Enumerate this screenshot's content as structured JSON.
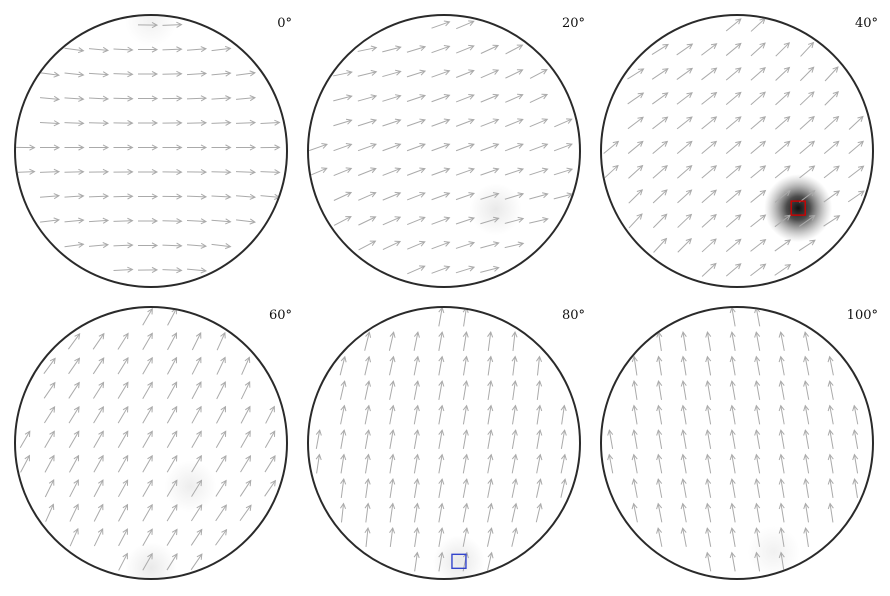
{
  "panels": [
    {
      "label": "0°",
      "direction_deg": 0,
      "arrow_color": "#aaaaaa",
      "hotspots": [
        {
          "x": 0.0,
          "y": 0.96,
          "intensity": 0.12
        }
      ],
      "marker": null
    },
    {
      "label": "20°",
      "direction_deg": 20,
      "arrow_color": "#aaaaaa",
      "hotspots": [
        {
          "x": 0.38,
          "y": -0.43,
          "intensity": 0.18
        }
      ],
      "marker": null
    },
    {
      "label": "40°",
      "direction_deg": 40,
      "arrow_color": "#aaaaaa",
      "hotspots": [
        {
          "x": 0.45,
          "y": -0.42,
          "intensity": 1.0
        }
      ],
      "marker": {
        "color": "#cc0000",
        "x": 0.45,
        "y": -0.42
      }
    },
    {
      "label": "60°",
      "direction_deg": 60,
      "arrow_color": "#aaaaaa",
      "hotspots": [
        {
          "x": 0.29,
          "y": -0.32,
          "intensity": 0.15
        },
        {
          "x": 0.0,
          "y": -0.92,
          "intensity": 0.18
        }
      ],
      "marker": null
    },
    {
      "label": "80°",
      "direction_deg": 80,
      "arrow_color": "#aaaaaa",
      "hotspots": [
        {
          "x": 0.11,
          "y": -0.87,
          "intensity": 0.2
        }
      ],
      "marker": {
        "color": "#3344cc",
        "x": 0.11,
        "y": -0.87
      }
    },
    {
      "label": "100°",
      "direction_deg": 100,
      "arrow_color": "#aaaaaa",
      "hotspots": [
        {
          "x": 0.27,
          "y": -0.8,
          "intensity": 0.12
        }
      ],
      "marker": null
    }
  ]
}
